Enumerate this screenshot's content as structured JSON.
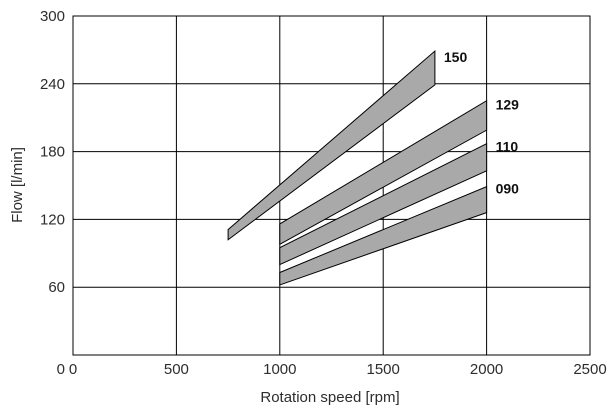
{
  "chart_data": {
    "type": "area",
    "title": "",
    "xlabel": "Rotation speed [rpm]",
    "ylabel": "Flow [l/min]",
    "xlim": [
      0,
      2500
    ],
    "ylim": [
      0,
      300
    ],
    "xticks": [
      0,
      500,
      1000,
      1500,
      2000,
      2500
    ],
    "yticks": [
      0,
      60,
      120,
      180,
      240,
      300
    ],
    "xtick_labels": [
      "0",
      "500",
      "1000",
      "1500",
      "2000",
      "2500"
    ],
    "ytick_labels": [
      "0",
      "60",
      "120",
      "180",
      "240",
      "300"
    ],
    "grid": true,
    "band_color": "#a9a9a9",
    "grid_color": "#000000",
    "series": [
      {
        "name": "150",
        "x": [
          750,
          1750
        ],
        "y_low": [
          102,
          239
        ],
        "y_high": [
          111,
          269
        ]
      },
      {
        "name": "129",
        "x": [
          1000,
          2000
        ],
        "y_low": [
          98,
          199
        ],
        "y_high": [
          116,
          225
        ]
      },
      {
        "name": "110",
        "x": [
          1000,
          2000
        ],
        "y_low": [
          80,
          163
        ],
        "y_high": [
          95,
          187
        ]
      },
      {
        "name": "090",
        "x": [
          1000,
          2000
        ],
        "y_low": [
          62,
          126
        ],
        "y_high": [
          73,
          149
        ]
      }
    ]
  }
}
